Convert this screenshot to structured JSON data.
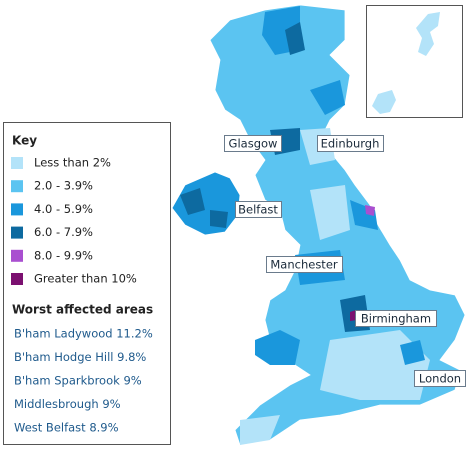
{
  "cities": [
    "Glasgow",
    "Edinburgh",
    "Belfast",
    "Manchester",
    "Birmingham",
    "London"
  ],
  "key": {
    "title": "Key",
    "items": [
      {
        "label": "Less than 2%",
        "color": "#b3e3f9"
      },
      {
        "label": "2.0 - 3.9%",
        "color": "#5bc4f1"
      },
      {
        "label": "4.0 - 5.9%",
        "color": "#1a97dc"
      },
      {
        "label": "6.0 - 7.9%",
        "color": "#0d6aa0"
      },
      {
        "label": "8.0 - 9.9%",
        "color": "#a94fd0"
      },
      {
        "label": "Greater than 10%",
        "color": "#7b1070"
      }
    ]
  },
  "worst": {
    "title": "Worst affected areas",
    "items": [
      "B'ham Ladywood 11.2%",
      "B'ham Hodge Hill 9.8%",
      "B'ham Sparkbrook 9%",
      "Middlesbrough 9%",
      "West Belfast 8.9%"
    ]
  }
}
